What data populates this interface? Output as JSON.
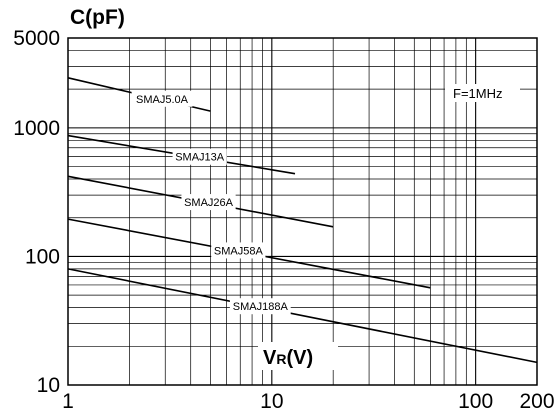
{
  "chart_data": {
    "type": "line",
    "title": "",
    "ylabel": "C(pF)",
    "xlabel_main": "V",
    "xlabel_sub": "R",
    "xlabel_tail": "(V)",
    "annotation": "F=1MHz",
    "x_scale": "log",
    "y_scale": "log",
    "xlim": [
      1,
      200
    ],
    "ylim": [
      10,
      5000
    ],
    "x_ticks": [
      {
        "value": 1,
        "label": "1"
      },
      {
        "value": 10,
        "label": "10"
      },
      {
        "value": 100,
        "label": "100"
      },
      {
        "value": 200,
        "label": "200"
      }
    ],
    "y_ticks": [
      {
        "value": 10,
        "label": "10"
      },
      {
        "value": 100,
        "label": "100"
      },
      {
        "value": 1000,
        "label": "1000"
      },
      {
        "value": 5000,
        "label": "5000"
      }
    ],
    "grid": true,
    "series": [
      {
        "name": "SMAJ5.0A",
        "x": [
          1,
          5
        ],
        "y": [
          2450,
          1350
        ]
      },
      {
        "name": "SMAJ13A",
        "x": [
          1,
          13
        ],
        "y": [
          870,
          440
        ]
      },
      {
        "name": "SMAJ26A",
        "x": [
          1,
          20
        ],
        "y": [
          420,
          170
        ]
      },
      {
        "name": "SMAJ58A",
        "x": [
          1,
          60
        ],
        "y": [
          195,
          57
        ]
      },
      {
        "name": "SMAJ188A",
        "x": [
          1,
          200
        ],
        "y": [
          80,
          15
        ]
      }
    ]
  }
}
